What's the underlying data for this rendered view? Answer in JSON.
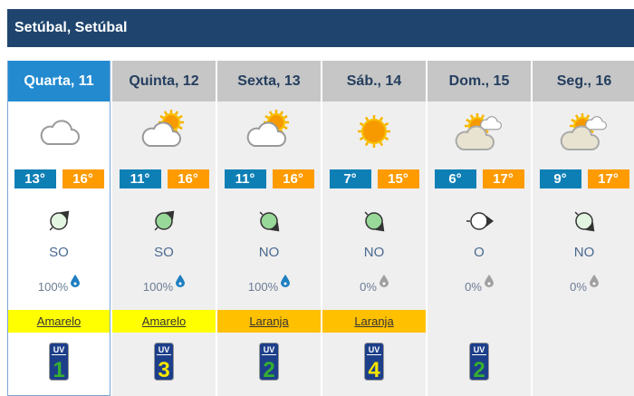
{
  "location": "Setúbal, Setúbal",
  "colors": {
    "title_bg": "#1f456e",
    "active_header": "#238ad0",
    "tmin": "#0e7fb5",
    "tmax": "#fd9b00",
    "yellow": "#ffff00",
    "orange": "#ffc000"
  },
  "days": [
    {
      "label": "Quarta, 11",
      "icon": "cloud-icon",
      "tmin": "13°",
      "tmax": "16°",
      "wind": "SO",
      "wind_angle": 45,
      "wind_fill": "#e2f5e0",
      "precip": "100%",
      "drop": "#1f7fc0",
      "warning": "Amarelo",
      "warning_color": "#ffff00",
      "uv": "1",
      "uv_color": "#35b030"
    },
    {
      "label": "Quinta, 12",
      "icon": "sun-cloud-icon",
      "tmin": "11°",
      "tmax": "16°",
      "wind": "SO",
      "wind_angle": 45,
      "wind_fill": "#98d898",
      "precip": "100%",
      "drop": "#1f7fc0",
      "warning": "Amarelo",
      "warning_color": "#ffff00",
      "uv": "3",
      "uv_color": "#f5e400"
    },
    {
      "label": "Sexta, 13",
      "icon": "sun-cloud-icon",
      "tmin": "11°",
      "tmax": "16°",
      "wind": "NO",
      "wind_angle": 135,
      "wind_fill": "#98d898",
      "precip": "100%",
      "drop": "#1f7fc0",
      "warning": "Laranja",
      "warning_color": "#ffc000",
      "uv": "2",
      "uv_color": "#35b030"
    },
    {
      "label": "Sáb., 14",
      "icon": "sun-icon",
      "tmin": "7°",
      "tmax": "15°",
      "wind": "NO",
      "wind_angle": 135,
      "wind_fill": "#98d898",
      "precip": "0%",
      "drop": "#a0a0a0",
      "warning": "Laranja",
      "warning_color": "#ffc000",
      "uv": "4",
      "uv_color": "#f5e400"
    },
    {
      "label": "Dom., 15",
      "icon": "sun-clouds-icon",
      "tmin": "6°",
      "tmax": "17°",
      "wind": "O",
      "wind_angle": 90,
      "wind_fill": "#ffffff",
      "precip": "0%",
      "drop": "#a0a0a0",
      "warning": "",
      "warning_color": "",
      "uv": "2",
      "uv_color": "#35b030"
    },
    {
      "label": "Seg., 16",
      "icon": "sun-clouds-icon",
      "tmin": "9°",
      "tmax": "17°",
      "wind": "NO",
      "wind_angle": 135,
      "wind_fill": "#e2f5e0",
      "precip": "0%",
      "drop": "#a0a0a0",
      "warning": "",
      "warning_color": "",
      "uv": "",
      "uv_color": ""
    }
  ],
  "uv_label": "UV"
}
